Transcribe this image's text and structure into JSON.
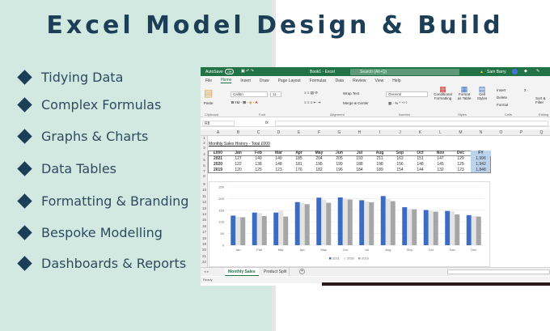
{
  "title": "Excel Model Design & Build",
  "bullets": [
    "Tidying Data",
    "Complex Formulas",
    "Graphs & Charts",
    "Data Tables",
    "Formatting & Branding",
    "Bespoke Modelling",
    "Dashboards & Reports"
  ],
  "excel": {
    "autosave": "AutoSave",
    "autosave_state": "Off",
    "book": "Book1 - Excel",
    "search": "Search (Alt+Q)",
    "user": "Sam Barry",
    "menu": [
      "File",
      "Home",
      "Insert",
      "Draw",
      "Page Layout",
      "Formulas",
      "Data",
      "Review",
      "View",
      "Help"
    ],
    "ribbon": {
      "font": "Calibri",
      "size": "11",
      "wrap": "Wrap Text",
      "merge": "Merge & Center",
      "number": "General",
      "paste": "Paste",
      "cond": "Conditional Formatting",
      "fmt_table": "Format as Table",
      "cell_styles": "Cell Styles",
      "insert": "Insert",
      "delete": "Delete",
      "format": "Format",
      "sort": "Sort & Filter",
      "groups": [
        "Clipboard",
        "Font",
        "Alignment",
        "Number",
        "Styles",
        "Cells",
        "Editing"
      ]
    },
    "name_box": "R8",
    "fx": "fx",
    "columns": [
      "A",
      "B",
      "C",
      "D",
      "E",
      "F",
      "G",
      "H",
      "I",
      "J",
      "K",
      "L",
      "M",
      "N",
      "O",
      "P",
      "Q"
    ],
    "rows": [
      "1",
      "2",
      "3",
      "4",
      "5",
      "6",
      "7",
      "8",
      "9",
      "10",
      "11",
      "12",
      "13",
      "14",
      "15",
      "16",
      "17",
      "18",
      "19",
      "20",
      "21",
      "22"
    ],
    "table_title": "Monthly Sales History - Total £000",
    "table": {
      "header": [
        "£000",
        "Jan",
        "Feb",
        "Mar",
        "Apr",
        "May",
        "Jun",
        "Jul",
        "Aug",
        "Sep",
        "Oct",
        "Nov",
        "Dec",
        "FY"
      ],
      "rows": [
        [
          "2021",
          "127",
          "140",
          "140",
          "185",
          "204",
          "205",
          "193",
          "211",
          "163",
          "151",
          "147",
          "129",
          "1,996"
        ],
        [
          "2020",
          "122",
          "138",
          "148",
          "181",
          "195",
          "199",
          "188",
          "198",
          "156",
          "148",
          "145",
          "125",
          "1,942"
        ],
        [
          "2019",
          "120",
          "125",
          "123",
          "176",
          "182",
          "196",
          "184",
          "189",
          "154",
          "144",
          "132",
          "123",
          "1,848"
        ]
      ]
    },
    "sheets": [
      "Monthly Sales",
      "Product Split"
    ],
    "status": "Ready"
  },
  "chart_data": {
    "type": "bar",
    "categories": [
      "Jan",
      "Feb",
      "Mar",
      "Apr",
      "May",
      "Jun",
      "Jul",
      "Aug",
      "Sep",
      "Oct",
      "Nov",
      "Dec"
    ],
    "series": [
      {
        "name": "2021",
        "color": "#3a6cc6",
        "values": [
          127,
          140,
          140,
          185,
          204,
          205,
          193,
          211,
          163,
          151,
          147,
          129
        ]
      },
      {
        "name": "2020",
        "color": "#e4e4e4",
        "values": [
          122,
          138,
          148,
          181,
          195,
          199,
          188,
          198,
          156,
          148,
          145,
          125
        ]
      },
      {
        "name": "2019",
        "color": "#a6a6a6",
        "values": [
          120,
          125,
          123,
          176,
          182,
          196,
          184,
          189,
          154,
          144,
          132,
          123
        ]
      }
    ],
    "yticks": [
      "0",
      "50",
      "100",
      "150",
      "200",
      "250"
    ],
    "ylim": [
      0,
      250
    ],
    "grid": true,
    "legend": "bottom"
  }
}
